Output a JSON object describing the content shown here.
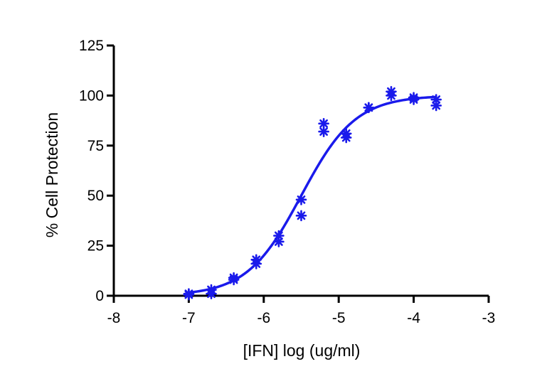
{
  "chart_data": {
    "type": "scatter",
    "title": "",
    "xlabel": "[IFN] log (ug/ml)",
    "ylabel": "% Cell Protection",
    "xlim": [
      -8,
      -3
    ],
    "ylim": [
      0,
      125
    ],
    "x_ticks": [
      -8,
      -7,
      -6,
      -5,
      -4,
      -3
    ],
    "x_tick_labels": [
      "-8",
      "-7",
      "-6",
      "-5",
      "-4",
      "-3"
    ],
    "y_ticks": [
      0,
      25,
      50,
      75,
      100,
      125
    ],
    "y_tick_labels": [
      "0",
      "25",
      "50",
      "75",
      "100",
      "125"
    ],
    "grid": false,
    "legend": "none",
    "colors": {
      "series": "#1a1aeb",
      "axis": "#000000"
    },
    "series": [
      {
        "kind": "points",
        "marker": "asterisk",
        "points": [
          [
            -7.0,
            1
          ],
          [
            -7.0,
            0.5
          ],
          [
            -6.7,
            3
          ],
          [
            -6.7,
            1
          ],
          [
            -6.4,
            9
          ],
          [
            -6.4,
            8
          ],
          [
            -6.1,
            18
          ],
          [
            -6.1,
            16
          ],
          [
            -5.8,
            30
          ],
          [
            -5.8,
            27
          ],
          [
            -5.5,
            48
          ],
          [
            -5.5,
            40
          ],
          [
            -5.2,
            86
          ],
          [
            -5.2,
            82
          ],
          [
            -4.9,
            81
          ],
          [
            -4.9,
            79
          ],
          [
            -4.6,
            94
          ],
          [
            -4.6,
            94
          ],
          [
            -4.3,
            102
          ],
          [
            -4.3,
            100
          ],
          [
            -4.0,
            99
          ],
          [
            -4.0,
            98
          ],
          [
            -3.7,
            98
          ],
          [
            -3.7,
            95
          ]
        ]
      },
      {
        "kind": "fit",
        "model": "sigmoid",
        "bottom": 0,
        "top": 100,
        "log_ec50": -5.5,
        "hill_slope": 1.2,
        "x_range": [
          -7.0,
          -3.7
        ]
      }
    ]
  }
}
